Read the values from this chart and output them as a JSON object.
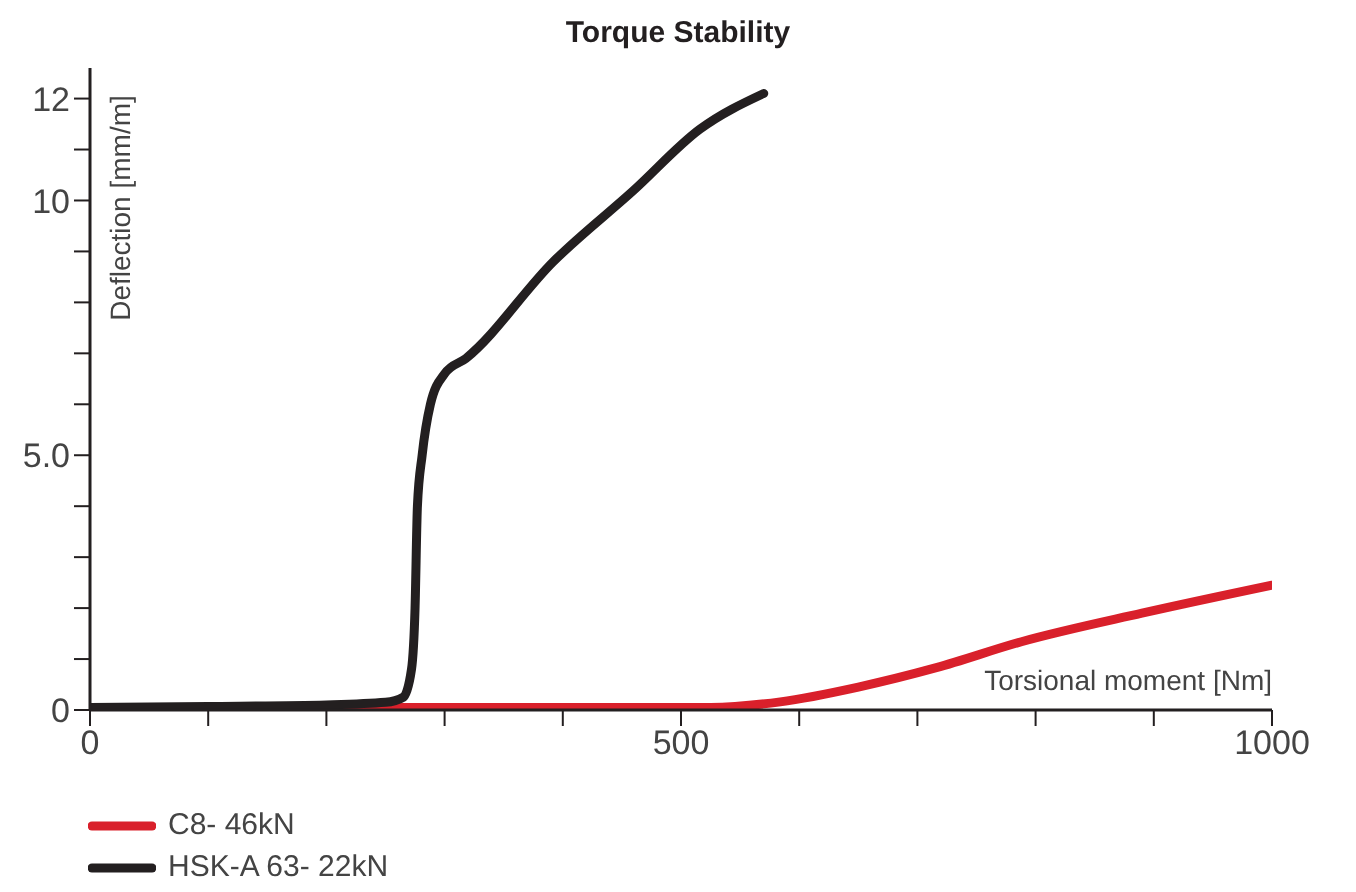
{
  "chart_data": {
    "type": "line",
    "title": "Torque Stability",
    "xlabel": "Torsional moment [Nm]",
    "ylabel": "Deflection [mm/m]",
    "xlim": [
      0,
      1000
    ],
    "xticks": [
      0,
      {
        "value": 100,
        "label": null
      },
      {
        "value": 200,
        "label": null
      },
      {
        "value": 300,
        "label": null
      },
      {
        "value": 400,
        "label": null
      },
      500,
      {
        "value": 600,
        "label": null
      },
      {
        "value": 700,
        "label": null
      },
      {
        "value": 800,
        "label": null
      },
      {
        "value": 900,
        "label": null
      },
      1000
    ],
    "ylim": [
      0,
      12.6
    ],
    "yticks": [
      0,
      {
        "value": 1,
        "label": null
      },
      {
        "value": 2,
        "label": null
      },
      {
        "value": 3,
        "label": null
      },
      {
        "value": 4,
        "label": null
      },
      {
        "value": 5,
        "label": "5.0"
      },
      {
        "value": 6,
        "label": null
      },
      {
        "value": 7,
        "label": null
      },
      {
        "value": 8,
        "label": null
      },
      {
        "value": 9,
        "label": null
      },
      10,
      {
        "value": 11,
        "label": null
      },
      12
    ],
    "grid": false,
    "legend": "bottom left",
    "marker": "none",
    "line_style": "solid",
    "series": [
      {
        "name": "C8- 46kN",
        "color": "#d9202b",
        "x": [
          0,
          100,
          200,
          300,
          400,
          525,
          584,
          650,
          716,
          788,
          890,
          1000
        ],
        "values": [
          0.05,
          0.05,
          0.05,
          0.05,
          0.05,
          0.05,
          0.16,
          0.45,
          0.83,
          1.34,
          1.9,
          2.45
        ]
      },
      {
        "name": "HSK-A 63- 22kN",
        "color": "#231f20",
        "x": [
          0,
          100,
          200,
          250,
          265,
          272,
          275,
          277,
          281,
          288,
          300,
          318,
          392,
          460,
          516,
          570
        ],
        "values": [
          0.05,
          0.07,
          0.1,
          0.15,
          0.25,
          0.8,
          2,
          4,
          5,
          6,
          6.6,
          6.9,
          8.8,
          10.2,
          11.4,
          12.1
        ]
      }
    ]
  }
}
